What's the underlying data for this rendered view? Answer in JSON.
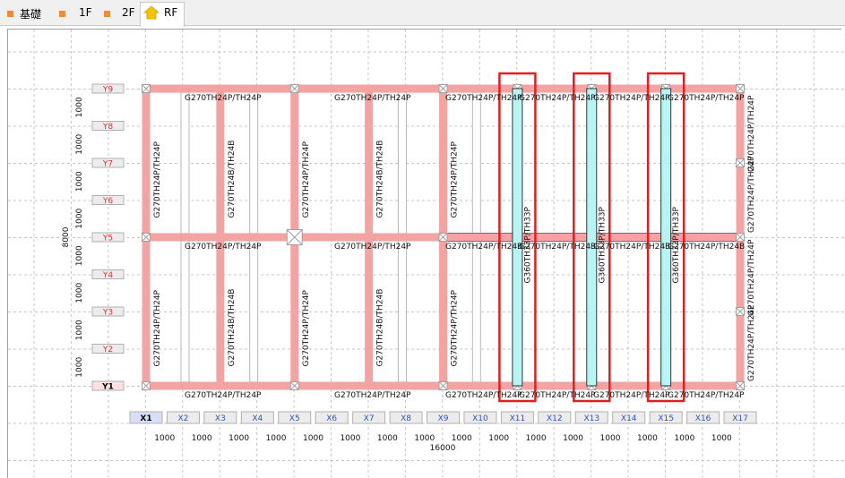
{
  "tabs": [
    {
      "label": "基礎",
      "icon": "orange-square-icon",
      "active": false
    },
    {
      "label": "1F",
      "icon": "orange-square-icon",
      "active": false
    },
    {
      "label": "2F",
      "icon": "orange-square-icon",
      "active": false
    },
    {
      "label": "RF",
      "icon": "house-icon",
      "active": true
    }
  ],
  "colors": {
    "beam": "#f4a3a3",
    "beam_selected": "#b8f4f4",
    "highlight": "#e02020",
    "axis_label_x": "#3050c8",
    "axis_label_y": "#e03030"
  },
  "axes": {
    "y": [
      "Y9",
      "Y8",
      "Y7",
      "Y6",
      "Y5",
      "Y4",
      "Y3",
      "Y2",
      "Y1"
    ],
    "x": [
      "X1",
      "X2",
      "X3",
      "X4",
      "X5",
      "X6",
      "X7",
      "X8",
      "X9",
      "X10",
      "X11",
      "X12",
      "X13",
      "X14",
      "X15",
      "X16",
      "X17"
    ],
    "selected_x": "X1",
    "selected_y": "Y1"
  },
  "dims": {
    "span": "1000",
    "total_x": "16000",
    "total_y": "8000"
  },
  "beam_labels": {
    "main": "G270TH24P/TH24P",
    "sub": "G270TH24B/TH24B",
    "mixed": "G270TH24P/TH24B",
    "selected": "G360TH33P/TH33P"
  }
}
